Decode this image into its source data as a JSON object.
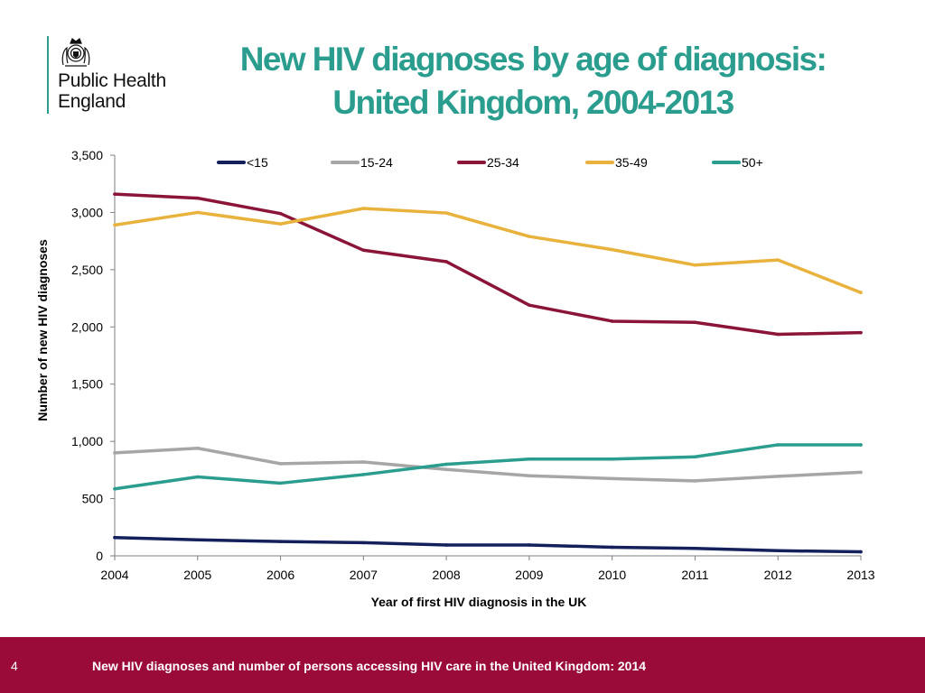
{
  "brand": {
    "org_name": "Public Health England",
    "logo_lines": [
      "Public Health",
      "England"
    ],
    "logo_icon": "royal-crest-icon"
  },
  "colors": {
    "title": "#2a9d8f",
    "footer_bg": "#9b0b3a",
    "axis": "#7f7f7f",
    "text": "#000000"
  },
  "title_lines": [
    "New HIV diagnoses by age of diagnosis:",
    "United Kingdom, 2004-2013"
  ],
  "footer": {
    "page_number": "4",
    "text": "New HIV diagnoses and number of persons accessing HIV care in the United Kingdom: 2014"
  },
  "chart_data": {
    "type": "line",
    "x": [
      "2004",
      "2005",
      "2006",
      "2007",
      "2008",
      "2009",
      "2010",
      "2011",
      "2012",
      "2013"
    ],
    "xlabel": "Year of first HIV diagnosis in the UK",
    "ylabel": "Number of new HIV diagnoses",
    "ylim": [
      0,
      3500
    ],
    "yticks": [
      0,
      500,
      1000,
      1500,
      2000,
      2500,
      3000,
      3500
    ],
    "ytick_labels": [
      "0",
      "500",
      "1,000",
      "1,500",
      "2,000",
      "2,500",
      "3,000",
      "3,500"
    ],
    "grid": false,
    "legend": "top",
    "series": [
      {
        "name": "<15",
        "color": "#13205c",
        "values": [
          160,
          140,
          125,
          115,
          95,
          95,
          75,
          65,
          45,
          35
        ]
      },
      {
        "name": "15-24",
        "color": "#a6a6a6",
        "values": [
          900,
          940,
          805,
          820,
          755,
          700,
          675,
          655,
          695,
          730
        ]
      },
      {
        "name": "25-34",
        "color": "#8b1538",
        "values": [
          3160,
          3125,
          2990,
          2670,
          2570,
          2190,
          2050,
          2040,
          1935,
          1950
        ]
      },
      {
        "name": "35-49",
        "color": "#e8b23c",
        "values": [
          2890,
          3000,
          2900,
          3035,
          2995,
          2790,
          2675,
          2540,
          2585,
          2300
        ]
      },
      {
        "name": "50+",
        "color": "#2a9d8f",
        "values": [
          585,
          690,
          635,
          710,
          800,
          845,
          845,
          865,
          970,
          970
        ]
      }
    ]
  }
}
